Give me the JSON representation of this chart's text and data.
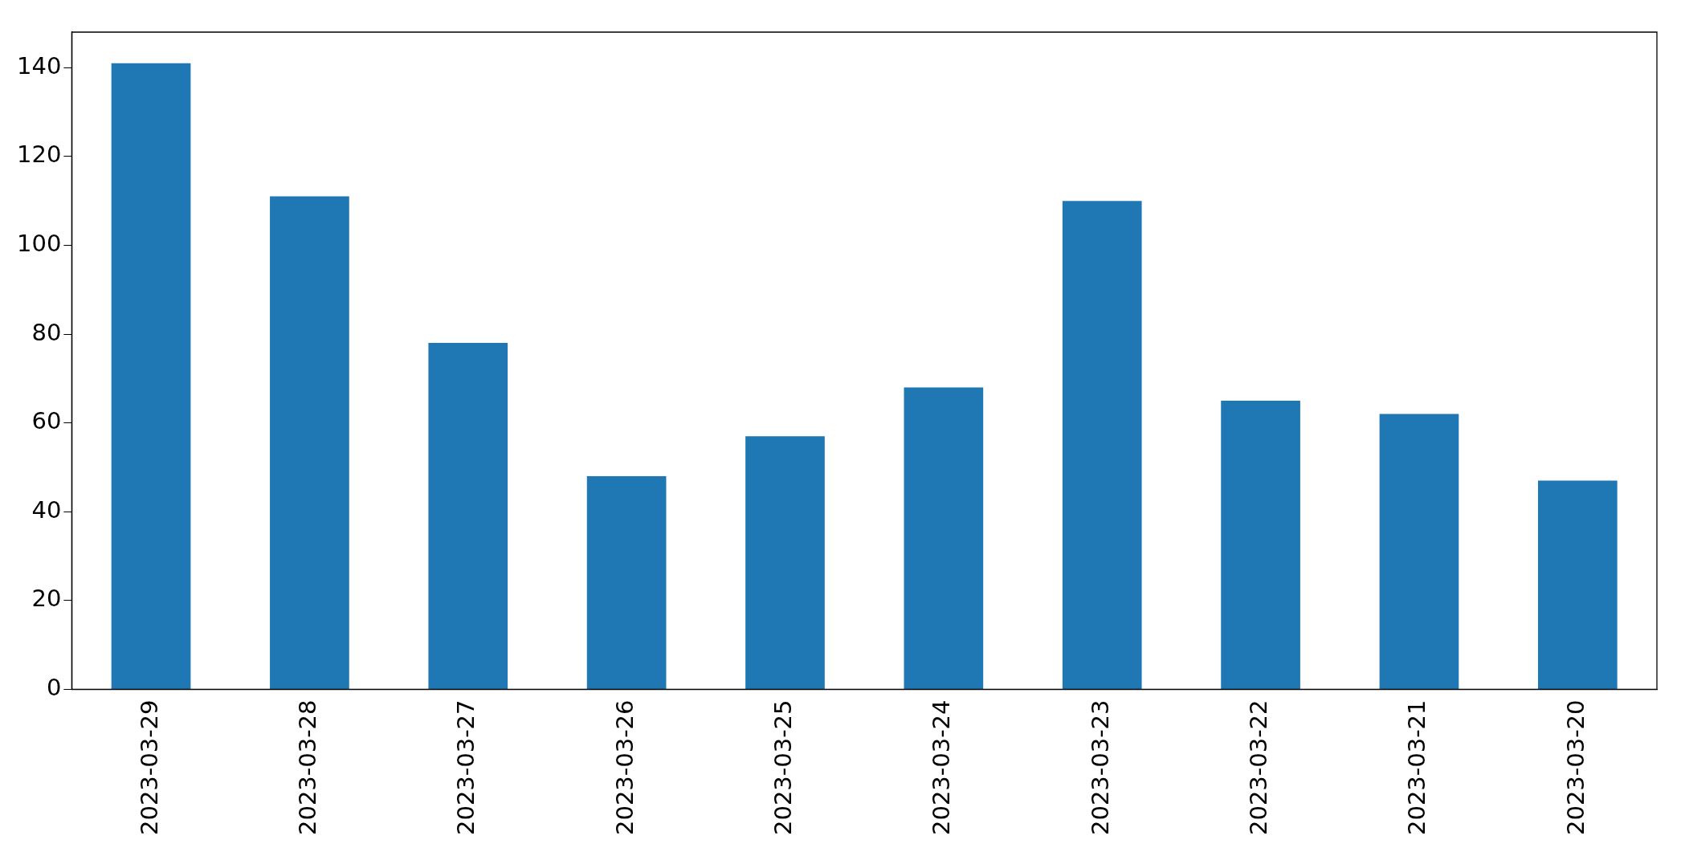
{
  "chart_data": {
    "type": "bar",
    "categories": [
      "2023-03-29",
      "2023-03-28",
      "2023-03-27",
      "2023-03-26",
      "2023-03-25",
      "2023-03-24",
      "2023-03-23",
      "2023-03-22",
      "2023-03-21",
      "2023-03-20"
    ],
    "values": [
      141,
      111,
      78,
      48,
      57,
      68,
      110,
      65,
      62,
      47
    ],
    "color": "#1f77b4",
    "ylim": [
      0,
      148
    ],
    "yticks": [
      0,
      20,
      40,
      60,
      80,
      100,
      120,
      140
    ],
    "grid": false,
    "legend": false
  }
}
